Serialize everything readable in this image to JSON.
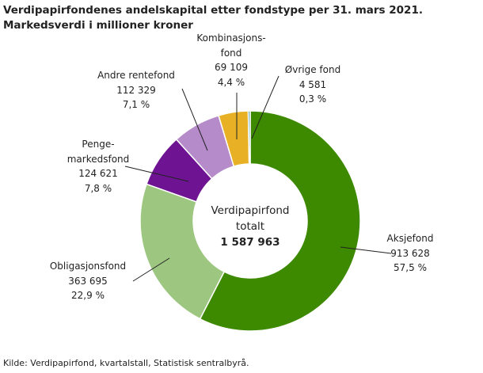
{
  "chart_data": {
    "type": "donut",
    "title": "Verdipapirfondenes andelskapital etter fondstype per 31. mars 2021. Markedsverdi i millioner kroner",
    "categories": [
      "Aksjefond",
      "Obligasjonsfond",
      "Penge-\nmarkedsfond",
      "Andre rentefond",
      "Kombinasjons-\nfond",
      "Øvrige fond"
    ],
    "values": [
      913628,
      363695,
      124621,
      112329,
      69109,
      4581
    ],
    "value_labels": [
      "913 628",
      "363 695",
      "124 621",
      "112 329",
      "69 109",
      "4 581"
    ],
    "percent_labels": [
      "57,5 %",
      "22,9 %",
      "7,8 %",
      "7,1 %",
      "4,4 %",
      "0,3 %"
    ],
    "colors": [
      "#3d8a00",
      "#9dc780",
      "#6e1492",
      "#b68bca",
      "#e8b125",
      "#4a9a9e"
    ],
    "center_label": "Verdipapirfond totalt",
    "total_label": "1 587 963",
    "source": "Kilde: Verdipapirfond, kvartalstall, Statistisk sentralbyrå."
  }
}
